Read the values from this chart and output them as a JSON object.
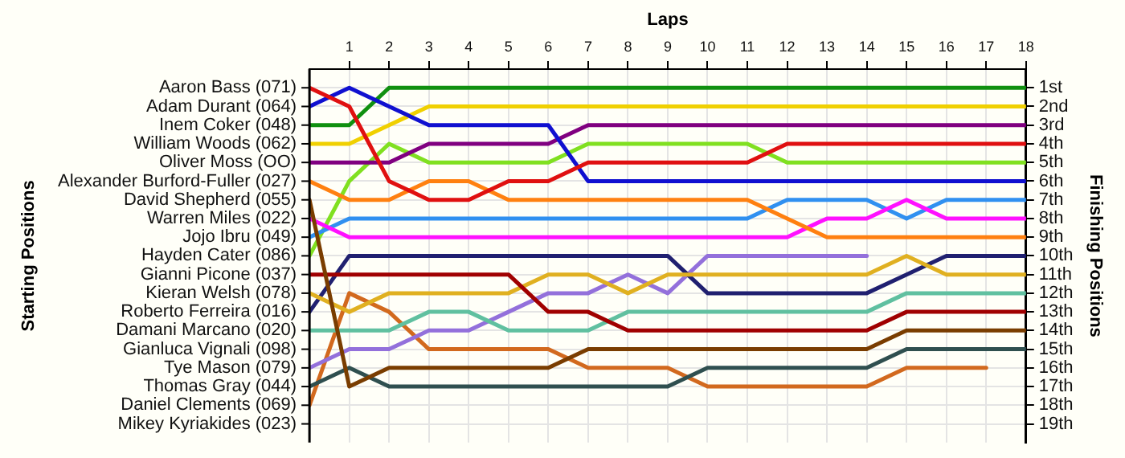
{
  "chart_data": {
    "type": "line",
    "xlabel": "Laps",
    "y2label": "Finishing Positions",
    "grid": true,
    "annotations": [
      "Starting Positions"
    ],
    "x": [
      0,
      1,
      2,
      3,
      4,
      5,
      6,
      7,
      8,
      9,
      10,
      11,
      12,
      13,
      14,
      15,
      16,
      17,
      18
    ],
    "xlim": [
      0,
      18
    ],
    "xticks": [
      1,
      2,
      3,
      4,
      5,
      6,
      7,
      8,
      9,
      10,
      11,
      12,
      13,
      14,
      15,
      16,
      17,
      18
    ],
    "y_categories": [
      "Aaron Bass (071)",
      "Adam Durant (064)",
      "Inem Coker (048)",
      "William Woods (062)",
      "Oliver Moss (OO)",
      "Alexander Burford-Fuller (027)",
      "David Shepherd (055)",
      "Warren Miles (022)",
      "Jojo Ibru (049)",
      "Hayden Cater (086)",
      "Gianni Picone (037)",
      "Kieran Welsh (078)",
      "Roberto Ferreira (016)",
      "Damani Marcano (020)",
      "Gianluca Vignali (098)",
      "Tye Mason (079)",
      "Thomas Gray (044)",
      "Daniel Clements (069)",
      "Mikey Kyriakides (023)"
    ],
    "y2lim": [
      20,
      0
    ],
    "y2ticks": [
      {
        "value": 1,
        "label": "1st"
      },
      {
        "value": 2,
        "label": "2nd"
      },
      {
        "value": 3,
        "label": "3rd"
      },
      {
        "value": 4,
        "label": "4th"
      },
      {
        "value": 5,
        "label": "5th"
      },
      {
        "value": 6,
        "label": "6th"
      },
      {
        "value": 7,
        "label": "7th"
      },
      {
        "value": 8,
        "label": "8th"
      },
      {
        "value": 9,
        "label": "9th"
      },
      {
        "value": 10,
        "label": "10th"
      },
      {
        "value": 11,
        "label": "11th"
      },
      {
        "value": 12,
        "label": "12th"
      },
      {
        "value": 13,
        "label": "13th"
      },
      {
        "value": 14,
        "label": "14th"
      },
      {
        "value": 15,
        "label": "15th"
      },
      {
        "value": 16,
        "label": "16th"
      },
      {
        "value": 17,
        "label": "17th"
      },
      {
        "value": 18,
        "label": "18th"
      },
      {
        "value": 19,
        "label": "19th"
      }
    ],
    "series": [
      {
        "axis": "y2",
        "color": "#e01010",
        "values": [
          1,
          2,
          6,
          7,
          7,
          6,
          6,
          5,
          5,
          5,
          5,
          5,
          4,
          4,
          4,
          4,
          4,
          4,
          4
        ]
      },
      {
        "axis": "y2",
        "color": "#1010d0",
        "values": [
          2,
          1,
          2,
          3,
          3,
          3,
          3,
          6,
          6,
          6,
          6,
          6,
          6,
          6,
          6,
          6,
          6,
          6,
          6
        ]
      },
      {
        "axis": "y2",
        "color": "#109010",
        "values": [
          3,
          3,
          1,
          1,
          1,
          1,
          1,
          1,
          1,
          1,
          1,
          1,
          1,
          1,
          1,
          1,
          1,
          1,
          1
        ]
      },
      {
        "axis": "y2",
        "color": "#f0d000",
        "values": [
          4,
          4,
          3,
          2,
          2,
          2,
          2,
          2,
          2,
          2,
          2,
          2,
          2,
          2,
          2,
          2,
          2,
          2,
          2
        ]
      },
      {
        "axis": "y2",
        "color": "#800080",
        "values": [
          5,
          5,
          5,
          4,
          4,
          4,
          4,
          3,
          3,
          3,
          3,
          3,
          3,
          3,
          3,
          3,
          3,
          3,
          3
        ]
      },
      {
        "axis": "y2",
        "color": "#ff8010",
        "values": [
          6,
          7,
          7,
          6,
          6,
          7,
          7,
          7,
          7,
          7,
          7,
          7,
          8,
          9,
          9,
          9,
          9,
          9,
          9
        ]
      },
      {
        "axis": "y2",
        "color": "#7a3d00",
        "values": [
          7,
          17,
          16,
          16,
          16,
          16,
          16,
          15,
          15,
          15,
          15,
          15,
          15,
          15,
          15,
          14,
          14,
          14,
          14
        ]
      },
      {
        "axis": "y2",
        "color": "#ff10ff",
        "values": [
          8,
          9,
          9,
          9,
          9,
          9,
          9,
          9,
          9,
          9,
          9,
          9,
          9,
          8,
          8,
          7,
          8,
          8,
          8
        ]
      },
      {
        "axis": "y2",
        "color": "#3090f0",
        "values": [
          9,
          8,
          8,
          8,
          8,
          8,
          8,
          8,
          8,
          8,
          8,
          8,
          7,
          7,
          7,
          8,
          7,
          7,
          7
        ]
      },
      {
        "axis": "y2",
        "color": "#80e020",
        "values": [
          10,
          6,
          4,
          5,
          5,
          5,
          5,
          4,
          4,
          4,
          4,
          4,
          5,
          5,
          5,
          5,
          5,
          5,
          5
        ]
      },
      {
        "axis": "y2",
        "color": "#a00000",
        "values": [
          11,
          11,
          11,
          11,
          11,
          11,
          13,
          13,
          14,
          14,
          14,
          14,
          14,
          14,
          14,
          13,
          13,
          13,
          13
        ]
      },
      {
        "axis": "y2",
        "color": "#e0b020",
        "values": [
          12,
          13,
          12,
          12,
          12,
          12,
          11,
          11,
          12,
          11,
          11,
          11,
          11,
          11,
          11,
          10,
          11,
          11,
          11
        ]
      },
      {
        "axis": "y2",
        "color": "#202070",
        "values": [
          13,
          10,
          10,
          10,
          10,
          10,
          10,
          10,
          10,
          10,
          12,
          12,
          12,
          12,
          12,
          11,
          10,
          10,
          10
        ]
      },
      {
        "axis": "y2",
        "color": "#60c0a0",
        "values": [
          14,
          14,
          14,
          13,
          13,
          14,
          14,
          14,
          13,
          13,
          13,
          13,
          13,
          13,
          13,
          12,
          12,
          12,
          12
        ]
      },
      {
        "axis": "y2",
        "color": "#9370db",
        "values": [
          16,
          15,
          15,
          14,
          14,
          13,
          12,
          12,
          11,
          12,
          10,
          10,
          10,
          10,
          10,
          null,
          null,
          null,
          null
        ]
      },
      {
        "axis": "y2",
        "color": "#2f4f4f",
        "values": [
          17,
          16,
          17,
          17,
          17,
          17,
          17,
          17,
          17,
          17,
          16,
          16,
          16,
          16,
          16,
          15,
          15,
          15,
          15
        ]
      },
      {
        "axis": "y2",
        "color": "#d2691e",
        "values": [
          18,
          12,
          13,
          15,
          15,
          15,
          15,
          16,
          16,
          16,
          17,
          17,
          17,
          17,
          17,
          16,
          16,
          16,
          null
        ]
      }
    ]
  }
}
